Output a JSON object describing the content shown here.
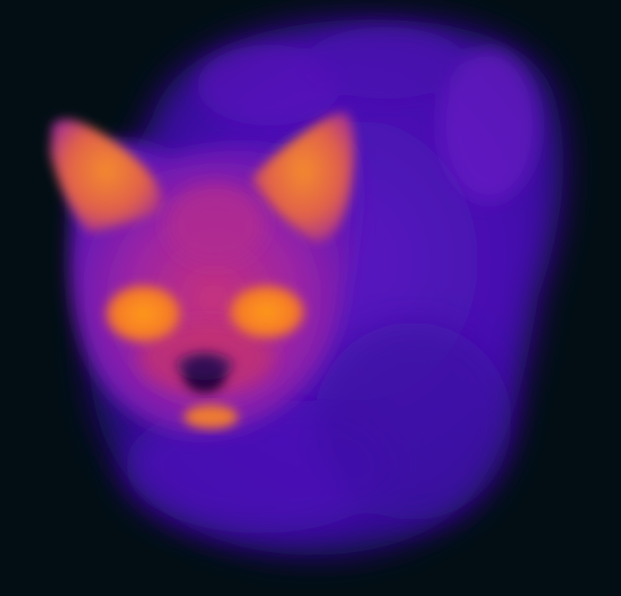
{
  "image": {
    "subject": "",
    "palette": {
      "background": "#020e14",
      "body_dark": "#2a0b8c",
      "body_mid": "#4a12b8",
      "body_light": "#6a1cc4",
      "face_warm": "#c2307a",
      "ear_hot": "#f07a2c",
      "eye_hot": "#ff8c1e",
      "nose_cold": "#1a0636"
    }
  }
}
